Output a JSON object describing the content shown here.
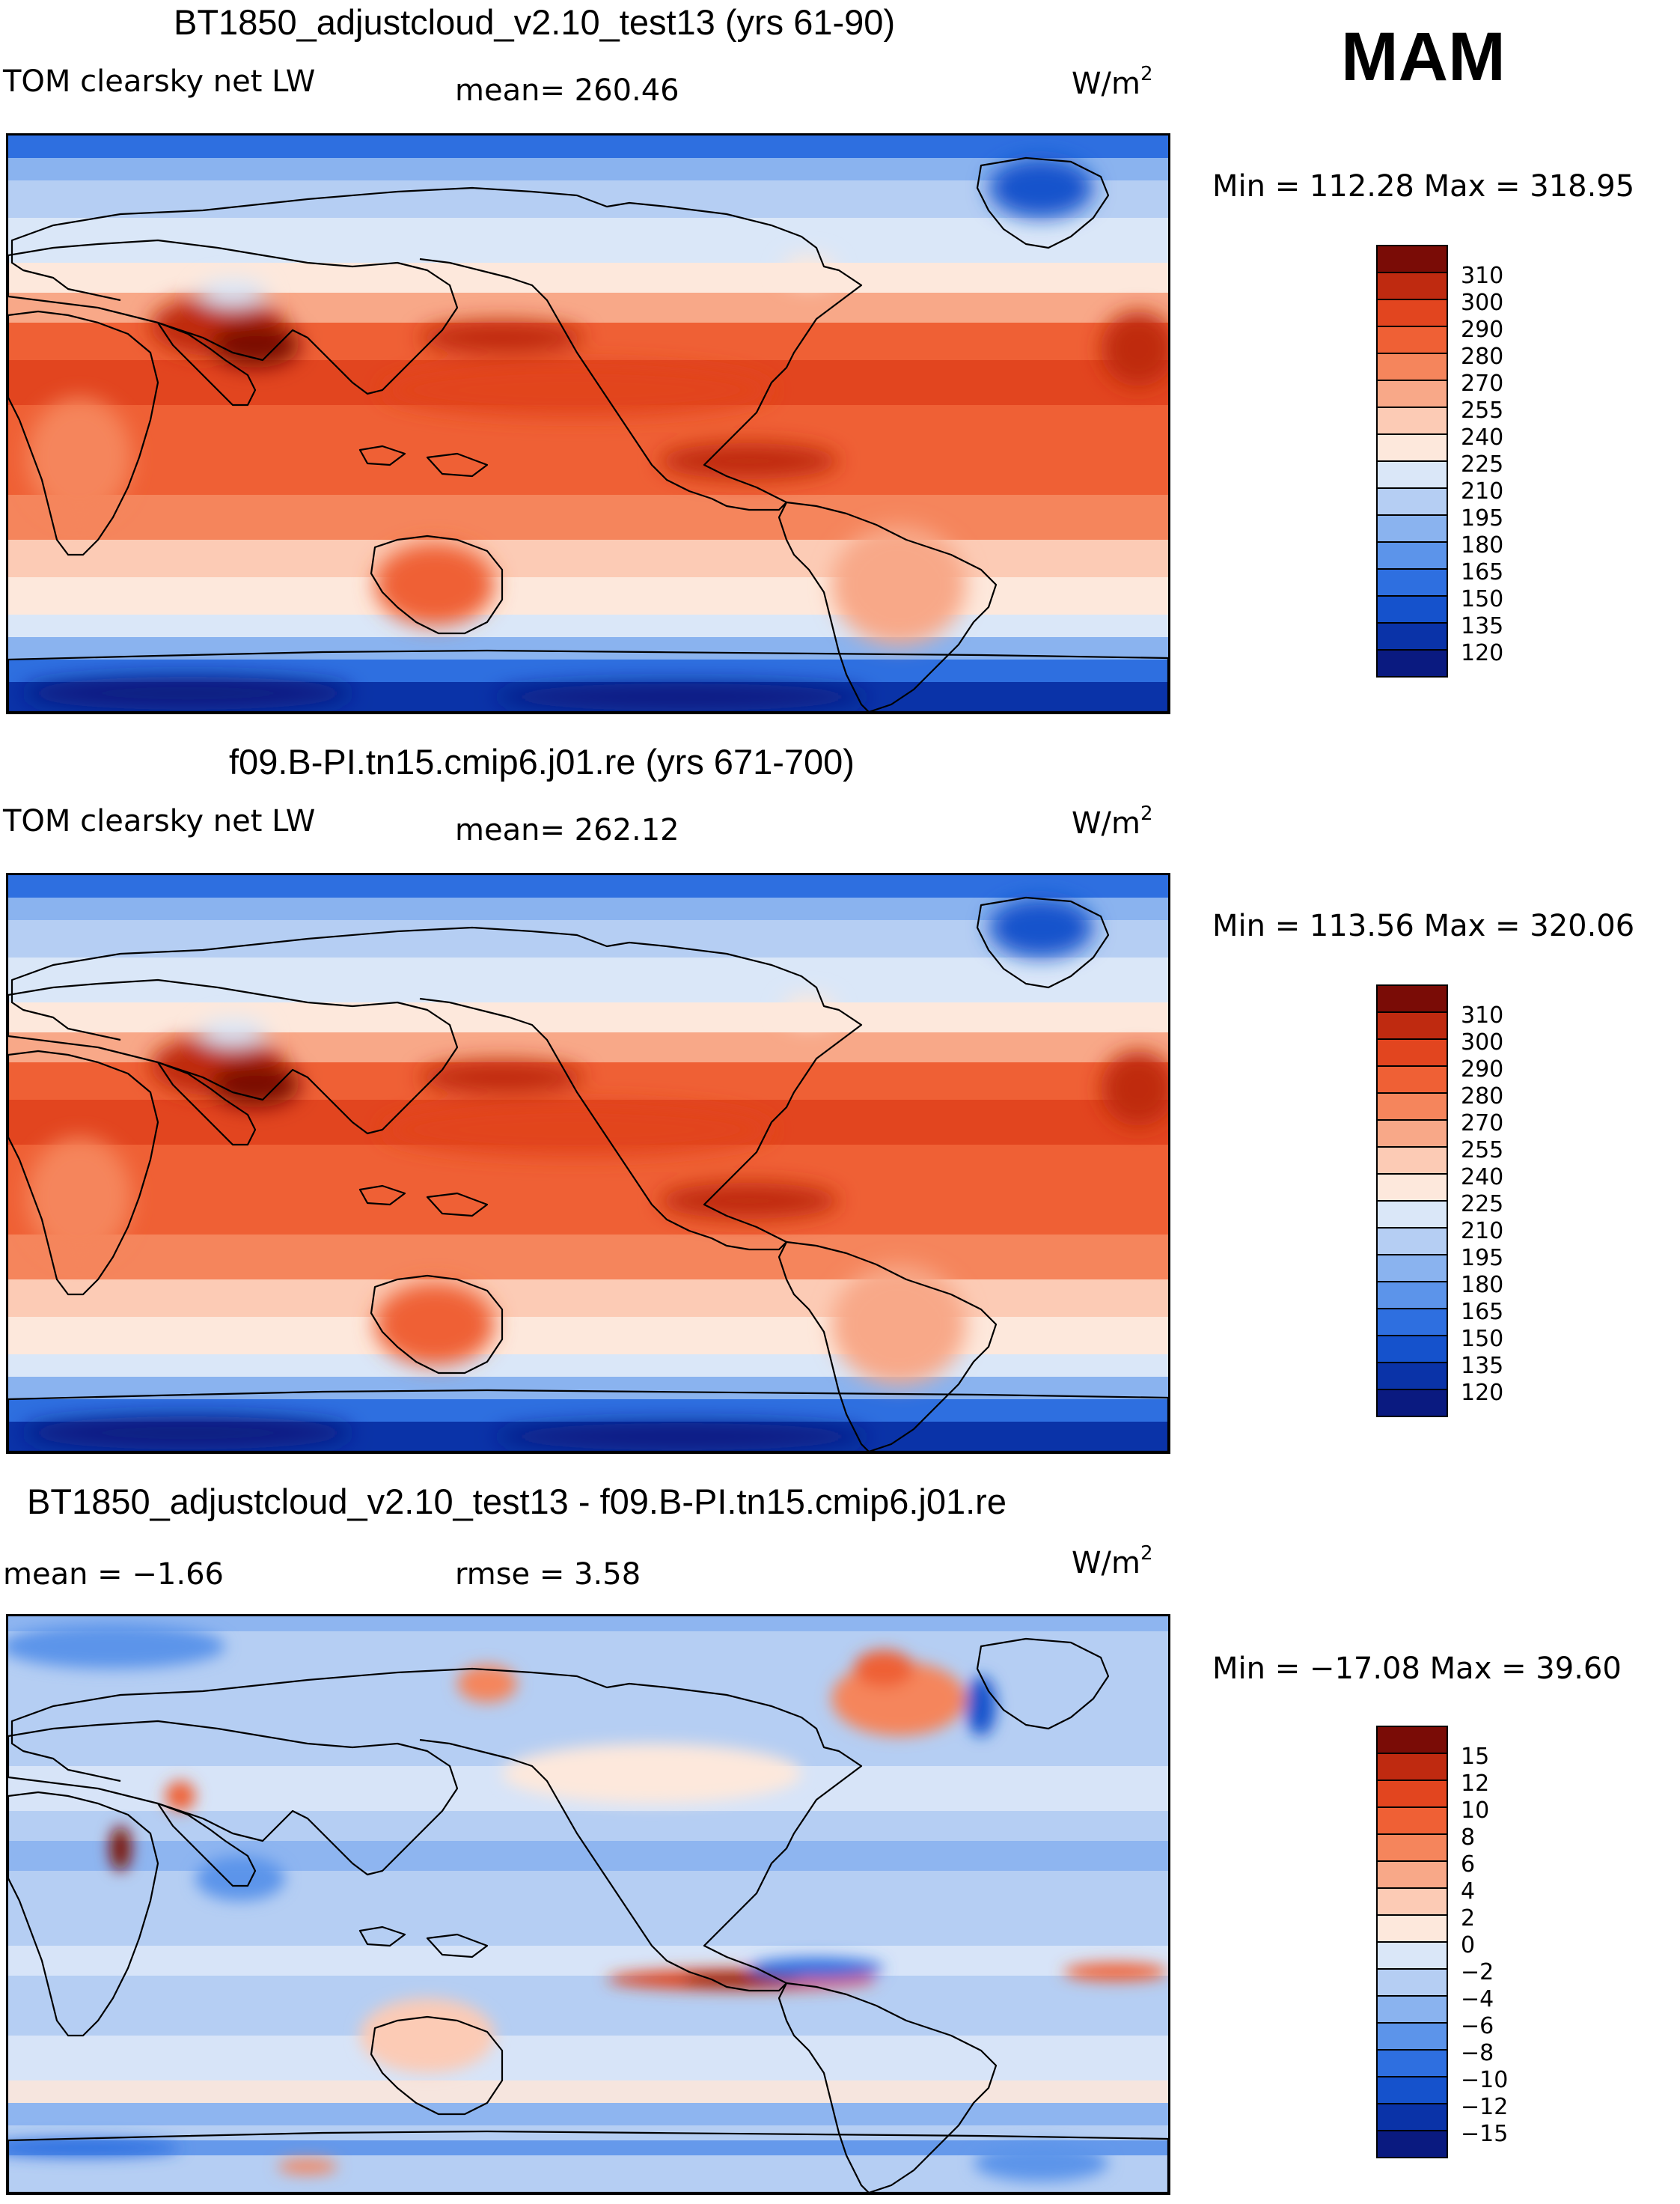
{
  "season": "MAM",
  "units_label": "W/m",
  "units_sup": "2",
  "panels": [
    {
      "title": "BT1850_adjustcloud_v2.10_test13 (yrs 61-90)",
      "left_label": "TOM clearsky net LW",
      "stat_label": "mean= 260.46",
      "minmax": "Min = 112.28 Max = 318.95",
      "kind": "abs"
    },
    {
      "title": "f09.B-PI.tn15.cmip6.j01.re (yrs 671-700)",
      "left_label": "TOM clearsky net LW",
      "stat_label": "mean= 262.12",
      "minmax": "Min = 113.56 Max = 320.06",
      "kind": "abs"
    },
    {
      "title": "BT1850_adjustcloud_v2.10_test13 - f09.B-PI.tn15.cmip6.j01.re",
      "left_label": "mean =  −1.66",
      "stat_label": "rmse =   3.58",
      "minmax": "Min = −17.08 Max =  39.60",
      "kind": "diff"
    }
  ],
  "chart_data": [
    {
      "type": "heatmap",
      "title": "BT1850_adjustcloud_v2.10_test13 (yrs 61-90)",
      "variable": "TOM clearsky net LW",
      "units": "W/m2",
      "mean": 260.46,
      "min": 112.28,
      "max": 318.95,
      "colorbar_levels": [
        120,
        135,
        150,
        165,
        180,
        195,
        210,
        225,
        240,
        255,
        270,
        280,
        290,
        300,
        310
      ],
      "colorbar_colors": [
        "#0a1a80",
        "#0a33a8",
        "#1552cc",
        "#2e6fe0",
        "#5c94ea",
        "#8ab3ef",
        "#b5cef3",
        "#dae7f8",
        "#fde8dc",
        "#fccbb5",
        "#f8a888",
        "#f5855c",
        "#ef6035",
        "#e2451f",
        "#bf2a10",
        "#7a0c06"
      ]
    },
    {
      "type": "heatmap",
      "title": "f09.B-PI.tn15.cmip6.j01.re (yrs 671-700)",
      "variable": "TOM clearsky net LW",
      "units": "W/m2",
      "mean": 262.12,
      "min": 113.56,
      "max": 320.06,
      "colorbar_levels": [
        120,
        135,
        150,
        165,
        180,
        195,
        210,
        225,
        240,
        255,
        270,
        280,
        290,
        300,
        310
      ],
      "colorbar_colors": [
        "#0a1a80",
        "#0a33a8",
        "#1552cc",
        "#2e6fe0",
        "#5c94ea",
        "#8ab3ef",
        "#b5cef3",
        "#dae7f8",
        "#fde8dc",
        "#fccbb5",
        "#f8a888",
        "#f5855c",
        "#ef6035",
        "#e2451f",
        "#bf2a10",
        "#7a0c06"
      ]
    },
    {
      "type": "heatmap",
      "title": "BT1850_adjustcloud_v2.10_test13 - f09.B-PI.tn15.cmip6.j01.re",
      "units": "W/m2",
      "mean": -1.66,
      "rmse": 3.58,
      "min": -17.08,
      "max": 39.6,
      "colorbar_levels": [
        -15,
        -12,
        -10,
        -8,
        -6,
        -4,
        -2,
        0,
        2,
        4,
        6,
        8,
        10,
        12,
        15
      ],
      "colorbar_labels": [
        "−15",
        "−12",
        "−10",
        "−8",
        "−6",
        "−4",
        "−2",
        "0",
        "2",
        "4",
        "6",
        "8",
        "10",
        "12",
        "15"
      ],
      "colorbar_colors": [
        "#0a1a80",
        "#0a33a8",
        "#1552cc",
        "#2e6fe0",
        "#5c94ea",
        "#8ab3ef",
        "#b5cef3",
        "#dae7f8",
        "#fde8dc",
        "#fccbb5",
        "#f8a888",
        "#f5855c",
        "#ef6035",
        "#e2451f",
        "#bf2a10",
        "#7a0c06"
      ]
    }
  ]
}
